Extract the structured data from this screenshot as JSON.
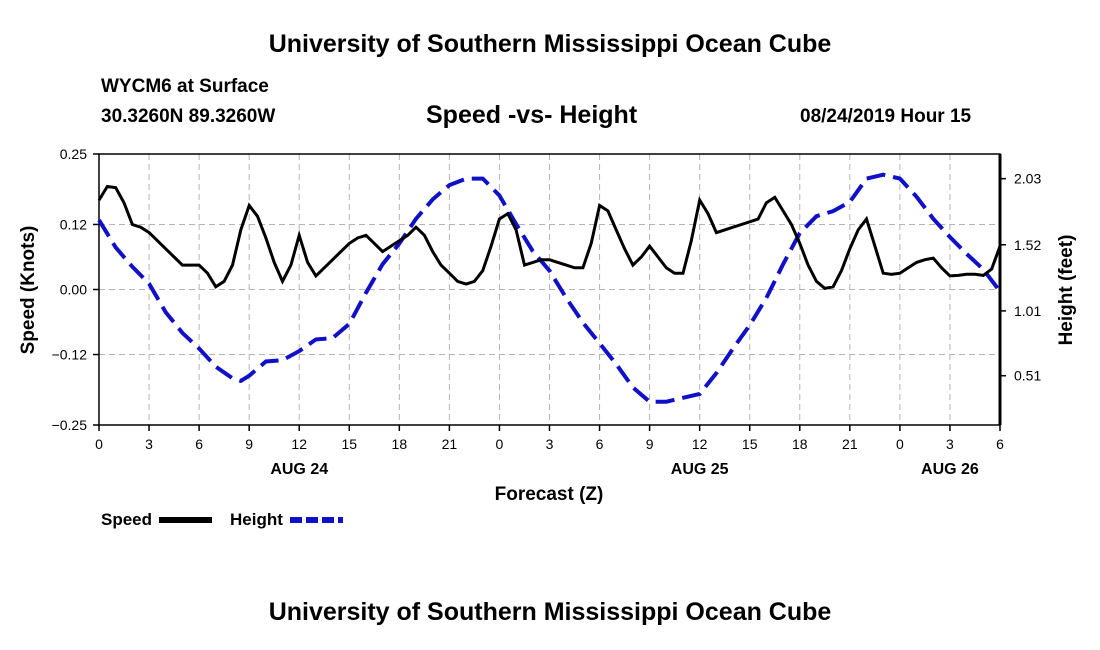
{
  "header": {
    "title": "University of Southern Mississippi Ocean Cube",
    "station": "WYCM6 at Surface",
    "coordinates": "30.3260N 89.3260W",
    "chart_title": "Speed -vs- Height",
    "datetime": "08/24/2019 Hour 15"
  },
  "footer": {
    "title": "University of Southern Mississippi Ocean Cube"
  },
  "colors": {
    "speed": "#000000",
    "height": "#1010c8",
    "grid": "#b4b4b4"
  },
  "legend": {
    "speed_label": "Speed",
    "height_label": "Height"
  },
  "chart_data": {
    "type": "line",
    "title": "Speed -vs- Height",
    "xlabel": "Forecast (Z)",
    "ylabel_left": "Speed (Knots)",
    "ylabel_right": "Height (feet)",
    "x_range_hours": [
      0,
      54
    ],
    "x_ticks": [
      {
        "hour": 0,
        "label": "0"
      },
      {
        "hour": 3,
        "label": "3"
      },
      {
        "hour": 6,
        "label": "6"
      },
      {
        "hour": 9,
        "label": "9"
      },
      {
        "hour": 12,
        "label": "12"
      },
      {
        "hour": 15,
        "label": "15"
      },
      {
        "hour": 18,
        "label": "18"
      },
      {
        "hour": 21,
        "label": "21"
      },
      {
        "hour": 24,
        "label": "0"
      },
      {
        "hour": 27,
        "label": "3"
      },
      {
        "hour": 30,
        "label": "6"
      },
      {
        "hour": 33,
        "label": "9"
      },
      {
        "hour": 36,
        "label": "12"
      },
      {
        "hour": 39,
        "label": "15"
      },
      {
        "hour": 42,
        "label": "18"
      },
      {
        "hour": 45,
        "label": "21"
      },
      {
        "hour": 48,
        "label": "0"
      },
      {
        "hour": 51,
        "label": "3"
      },
      {
        "hour": 54,
        "label": "6"
      }
    ],
    "date_labels": [
      {
        "hour": 12,
        "label": "AUG 24"
      },
      {
        "hour": 36,
        "label": "AUG 25"
      },
      {
        "hour": 51,
        "label": "AUG 26"
      }
    ],
    "y_left": {
      "min": -0.25,
      "max": 0.25,
      "ticks": [
        0.25,
        0.12,
        0.0,
        -0.12,
        -0.25
      ],
      "tick_labels": [
        "0.25",
        "0.12",
        "0.00",
        "−0.12",
        "−0.25"
      ]
    },
    "y_right": {
      "min": 0.13,
      "max": 2.22,
      "ticks": [
        2.03,
        1.52,
        1.01,
        0.51
      ],
      "tick_labels": [
        "2.03",
        "1.52",
        "1.01",
        "0.51"
      ]
    },
    "series": [
      {
        "name": "Speed",
        "axis": "left",
        "style": "solid",
        "x": [
          0,
          0.5,
          1,
          1.5,
          2,
          2.5,
          3,
          3.5,
          4,
          4.5,
          5,
          5.5,
          6,
          6.5,
          7,
          7.5,
          8,
          8.5,
          9,
          9.5,
          10,
          10.5,
          11,
          11.5,
          12,
          12.5,
          13,
          13.5,
          14,
          14.5,
          15,
          15.5,
          16,
          16.5,
          17,
          17.5,
          18,
          18.5,
          19,
          19.5,
          20,
          20.5,
          21,
          21.5,
          22,
          22.5,
          23,
          23.5,
          24,
          24.5,
          25,
          25.5,
          26,
          26.5,
          27,
          27.5,
          28,
          28.5,
          29,
          29.5,
          30,
          30.5,
          31,
          31.5,
          32,
          32.5,
          33,
          33.5,
          34,
          34.5,
          35,
          35.5,
          36,
          36.5,
          37,
          37.5,
          38,
          38.5,
          39,
          39.5,
          40,
          40.5,
          41,
          41.5,
          42,
          42.5,
          43,
          43.5,
          44,
          44.5,
          45,
          45.5,
          46,
          46.5,
          47,
          47.5,
          48,
          48.5,
          49,
          49.5,
          50,
          50.5,
          51,
          51.5,
          52,
          52.5,
          53,
          53.5,
          54
        ],
        "values": [
          0.165,
          0.19,
          0.188,
          0.16,
          0.12,
          0.115,
          0.105,
          0.09,
          0.075,
          0.06,
          0.045,
          0.045,
          0.045,
          0.03,
          0.005,
          0.015,
          0.045,
          0.11,
          0.155,
          0.135,
          0.095,
          0.05,
          0.015,
          0.045,
          0.1,
          0.05,
          0.025,
          0.04,
          0.055,
          0.07,
          0.085,
          0.095,
          0.1,
          0.085,
          0.07,
          0.08,
          0.09,
          0.1,
          0.115,
          0.1,
          0.07,
          0.045,
          0.03,
          0.015,
          0.01,
          0.015,
          0.035,
          0.08,
          0.13,
          0.14,
          0.11,
          0.045,
          0.05,
          0.055,
          0.055,
          0.05,
          0.045,
          0.04,
          0.04,
          0.085,
          0.155,
          0.145,
          0.11,
          0.075,
          0.045,
          0.06,
          0.08,
          0.06,
          0.04,
          0.03,
          0.03,
          0.09,
          0.165,
          0.14,
          0.105,
          0.11,
          0.115,
          0.12,
          0.125,
          0.13,
          0.16,
          0.17,
          0.145,
          0.12,
          0.085,
          0.045,
          0.015,
          0.002,
          0.005,
          0.035,
          0.075,
          0.11,
          0.13,
          0.08,
          0.03,
          0.028,
          0.03,
          0.04,
          0.05,
          0.055,
          0.058,
          0.04,
          0.025,
          0.026,
          0.028,
          0.028,
          0.026,
          0.038,
          0.08
        ]
      },
      {
        "name": "Height",
        "axis": "right",
        "style": "dashed",
        "x": [
          0,
          1,
          2,
          3,
          4,
          5,
          6,
          7,
          8,
          8.5,
          9,
          10,
          11,
          12,
          13,
          14,
          15,
          16,
          17,
          18,
          19,
          20,
          21,
          22,
          23,
          24,
          25,
          26,
          27,
          28,
          29,
          30,
          31,
          32,
          33,
          34,
          35,
          36,
          37,
          38,
          39,
          40,
          41,
          42,
          43,
          44,
          45,
          46,
          47,
          48,
          49,
          50,
          51,
          52,
          53,
          54
        ],
        "values": [
          1.71,
          1.5,
          1.35,
          1.22,
          1.0,
          0.84,
          0.72,
          0.58,
          0.49,
          0.47,
          0.51,
          0.62,
          0.63,
          0.7,
          0.79,
          0.8,
          0.91,
          1.15,
          1.37,
          1.53,
          1.72,
          1.87,
          1.98,
          2.03,
          2.03,
          1.9,
          1.68,
          1.47,
          1.32,
          1.11,
          0.92,
          0.76,
          0.6,
          0.42,
          0.31,
          0.31,
          0.34,
          0.37,
          0.53,
          0.72,
          0.9,
          1.11,
          1.37,
          1.61,
          1.74,
          1.78,
          1.85,
          2.03,
          2.06,
          2.03,
          1.89,
          1.72,
          1.58,
          1.45,
          1.33,
          1.16
        ]
      }
    ]
  }
}
